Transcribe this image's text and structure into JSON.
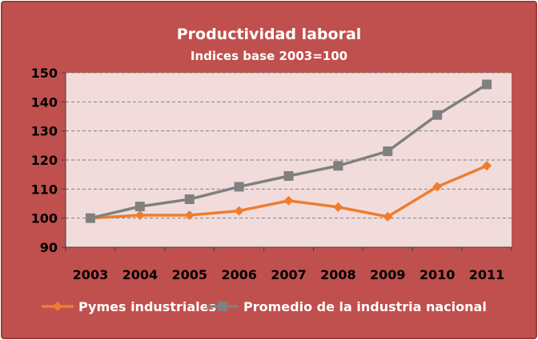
{
  "chart_data": {
    "type": "line",
    "title": "Productividad laboral",
    "subtitle": "Indices base 2003=100",
    "categories": [
      "2003",
      "2004",
      "2005",
      "2006",
      "2007",
      "2008",
      "2009",
      "2010",
      "2011"
    ],
    "series": [
      {
        "name": "Pymes industriales",
        "color": "#ed7d31",
        "marker": "diamond",
        "values": [
          100,
          101,
          101,
          102.5,
          106,
          103.8,
          100.5,
          110.8,
          118
        ]
      },
      {
        "name": "Promedio de la industria nacional",
        "color": "#808080",
        "marker": "square",
        "values": [
          100,
          104,
          106.5,
          110.8,
          114.5,
          118,
          123,
          135.5,
          146
        ]
      }
    ],
    "yticks": [
      "90",
      "100",
      "110",
      "120",
      "130",
      "140",
      "150"
    ],
    "ylim": [
      90,
      150
    ],
    "grid": true,
    "legend": "bottom",
    "colors": {
      "frame": "#c0504d",
      "plot_area": "#f2dcdb",
      "grid": "#7f7f7f"
    }
  }
}
